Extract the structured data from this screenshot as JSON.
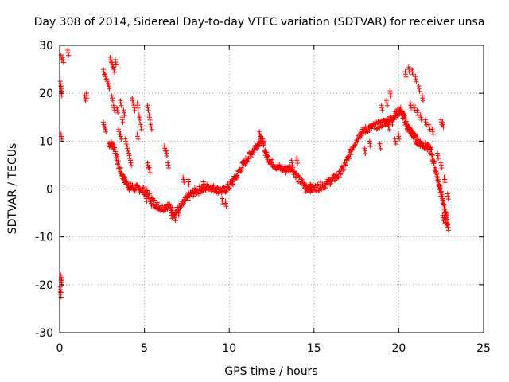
{
  "chart_data": {
    "type": "scatter",
    "title": "Day 308 of 2014, Sidereal Day-to-day VTEC variation (SDTVAR) for receiver unsa",
    "xlabel": "GPS time / hours",
    "ylabel": "SDTVAR / TECUs",
    "xlim": [
      0,
      25
    ],
    "ylim": [
      -30,
      30
    ],
    "xticks": [
      0,
      5,
      10,
      15,
      20,
      25
    ],
    "yticks": [
      -30,
      -20,
      -10,
      0,
      10,
      20,
      30
    ],
    "xtick_labels": [
      "0",
      "5",
      "10",
      "15",
      "20",
      "25"
    ],
    "ytick_labels": [
      "-30",
      "-20",
      "-10",
      "0",
      "10",
      "20",
      "30"
    ],
    "grid": true,
    "marker": "plus",
    "color": "#ff0000",
    "main_trend": {
      "x": [
        2.9,
        3.2,
        3.5,
        3.8,
        4.1,
        4.4,
        4.8,
        5.2,
        5.6,
        6.0,
        6.4,
        6.8,
        7.2,
        7.6,
        8.0,
        8.4,
        8.8,
        9.2,
        9.6,
        10.0,
        10.4,
        10.8,
        11.2,
        11.6,
        11.9,
        12.2,
        12.5,
        12.9,
        13.3,
        13.7,
        14.1,
        14.5,
        14.9,
        15.3,
        15.7,
        16.1,
        16.5,
        16.9,
        17.3,
        17.7,
        18.1,
        18.5,
        18.9,
        19.2,
        19.5,
        19.8,
        20.1,
        20.3,
        20.5,
        20.7,
        20.9,
        21.1,
        21.3,
        21.6,
        21.9,
        22.1,
        22.3,
        22.5,
        22.7,
        22.9
      ],
      "y": [
        9.5,
        9.0,
        4.5,
        2.0,
        0.5,
        0.2,
        0.0,
        -1.0,
        -3.0,
        -4.0,
        -3.5,
        -5.0,
        -3.5,
        -1.5,
        -0.5,
        0.0,
        0.5,
        0.0,
        -0.5,
        0.5,
        2.5,
        5.0,
        7.0,
        9.0,
        10.5,
        7.0,
        5.5,
        4.5,
        4.0,
        4.5,
        2.0,
        0.5,
        0.0,
        0.5,
        1.0,
        2.0,
        3.0,
        5.5,
        9.0,
        11.5,
        12.5,
        13.0,
        13.5,
        14.0,
        14.5,
        15.5,
        16.5,
        15.0,
        13.0,
        12.0,
        11.0,
        10.0,
        9.5,
        9.0,
        8.0,
        5.0,
        2.0,
        -1.0,
        -4.0,
        -7.5
      ]
    },
    "clusters": [
      {
        "x": 0.1,
        "y": 27.5
      },
      {
        "x": 0.2,
        "y": 27.0
      },
      {
        "x": 0.5,
        "y": 28.5
      },
      {
        "x": 0.05,
        "y": 22.0
      },
      {
        "x": 0.1,
        "y": 21.0
      },
      {
        "x": 0.1,
        "y": 20.0
      },
      {
        "x": 0.1,
        "y": 11.0
      },
      {
        "x": 0.1,
        "y": -18.5
      },
      {
        "x": 0.1,
        "y": -19.5
      },
      {
        "x": 0.05,
        "y": -21.0
      },
      {
        "x": 0.05,
        "y": -22.0
      },
      {
        "x": 1.5,
        "y": 19.0
      },
      {
        "x": 1.6,
        "y": 19.5
      },
      {
        "x": 2.6,
        "y": 24.5
      },
      {
        "x": 2.7,
        "y": 23.5
      },
      {
        "x": 2.8,
        "y": 22.5
      },
      {
        "x": 2.9,
        "y": 21.5
      },
      {
        "x": 3.0,
        "y": 27.0
      },
      {
        "x": 3.1,
        "y": 26.0
      },
      {
        "x": 3.2,
        "y": 25.0
      },
      {
        "x": 3.3,
        "y": 26.5
      },
      {
        "x": 2.6,
        "y": 13.5
      },
      {
        "x": 2.7,
        "y": 12.5
      },
      {
        "x": 3.1,
        "y": 19.0
      },
      {
        "x": 3.2,
        "y": 17.0
      },
      {
        "x": 3.4,
        "y": 16.5
      },
      {
        "x": 3.6,
        "y": 18.0
      },
      {
        "x": 3.8,
        "y": 16.0
      },
      {
        "x": 3.7,
        "y": 14.5
      },
      {
        "x": 3.5,
        "y": 12.0
      },
      {
        "x": 3.6,
        "y": 11.0
      },
      {
        "x": 3.9,
        "y": 10.0
      },
      {
        "x": 4.0,
        "y": 8.5
      },
      {
        "x": 4.1,
        "y": 7.0
      },
      {
        "x": 4.2,
        "y": 5.5
      },
      {
        "x": 4.3,
        "y": 18.5
      },
      {
        "x": 4.4,
        "y": 17.0
      },
      {
        "x": 4.6,
        "y": 17.5
      },
      {
        "x": 4.7,
        "y": 15.0
      },
      {
        "x": 4.8,
        "y": 13.0
      },
      {
        "x": 4.6,
        "y": 11.0
      },
      {
        "x": 5.2,
        "y": 17.0
      },
      {
        "x": 5.3,
        "y": 15.0
      },
      {
        "x": 5.4,
        "y": 13.0
      },
      {
        "x": 5.2,
        "y": 5.0
      },
      {
        "x": 5.3,
        "y": 4.0
      },
      {
        "x": 5.1,
        "y": -2.0
      },
      {
        "x": 5.4,
        "y": -3.0
      },
      {
        "x": 6.2,
        "y": 8.5
      },
      {
        "x": 6.3,
        "y": 7.5
      },
      {
        "x": 6.4,
        "y": 5.0
      },
      {
        "x": 6.6,
        "y": -5.5
      },
      {
        "x": 6.8,
        "y": -6.0
      },
      {
        "x": 7.0,
        "y": -5.0
      },
      {
        "x": 7.3,
        "y": 2.0
      },
      {
        "x": 7.6,
        "y": 1.5
      },
      {
        "x": 8.5,
        "y": 1.0
      },
      {
        "x": 9.6,
        "y": -2.5
      },
      {
        "x": 9.8,
        "y": -3.0
      },
      {
        "x": 10.2,
        "y": 1.5
      },
      {
        "x": 11.8,
        "y": 11.5
      },
      {
        "x": 12.0,
        "y": 10.0
      },
      {
        "x": 13.7,
        "y": 5.5
      },
      {
        "x": 14.0,
        "y": 6.0
      },
      {
        "x": 14.5,
        "y": 0.0
      },
      {
        "x": 14.8,
        "y": 0.5
      },
      {
        "x": 18.0,
        "y": 8.0
      },
      {
        "x": 18.3,
        "y": 9.5
      },
      {
        "x": 19.5,
        "y": 20.0
      },
      {
        "x": 19.3,
        "y": 18.0
      },
      {
        "x": 19.0,
        "y": 17.0
      },
      {
        "x": 18.9,
        "y": 9.0
      },
      {
        "x": 19.4,
        "y": 13.0
      },
      {
        "x": 19.6,
        "y": 14.0
      },
      {
        "x": 19.8,
        "y": 10.0
      },
      {
        "x": 20.0,
        "y": 11.0
      },
      {
        "x": 20.4,
        "y": 24.0
      },
      {
        "x": 20.6,
        "y": 25.0
      },
      {
        "x": 20.8,
        "y": 24.5
      },
      {
        "x": 21.0,
        "y": 23.0
      },
      {
        "x": 21.2,
        "y": 21.0
      },
      {
        "x": 21.4,
        "y": 19.0
      },
      {
        "x": 20.7,
        "y": 17.5
      },
      {
        "x": 20.9,
        "y": 17.0
      },
      {
        "x": 21.1,
        "y": 16.0
      },
      {
        "x": 21.3,
        "y": 15.0
      },
      {
        "x": 21.6,
        "y": 14.0
      },
      {
        "x": 21.8,
        "y": 13.0
      },
      {
        "x": 22.0,
        "y": 12.0
      },
      {
        "x": 22.3,
        "y": 7.0
      },
      {
        "x": 22.5,
        "y": 5.0
      },
      {
        "x": 22.7,
        "y": 2.0
      },
      {
        "x": 22.5,
        "y": 14.0
      },
      {
        "x": 22.6,
        "y": 13.5
      },
      {
        "x": 22.9,
        "y": -1.5
      },
      {
        "x": 22.6,
        "y": -6.0
      },
      {
        "x": 22.8,
        "y": -7.0
      },
      {
        "x": 22.9,
        "y": -8.0
      },
      {
        "x": 22.7,
        "y": -6.5
      }
    ]
  }
}
